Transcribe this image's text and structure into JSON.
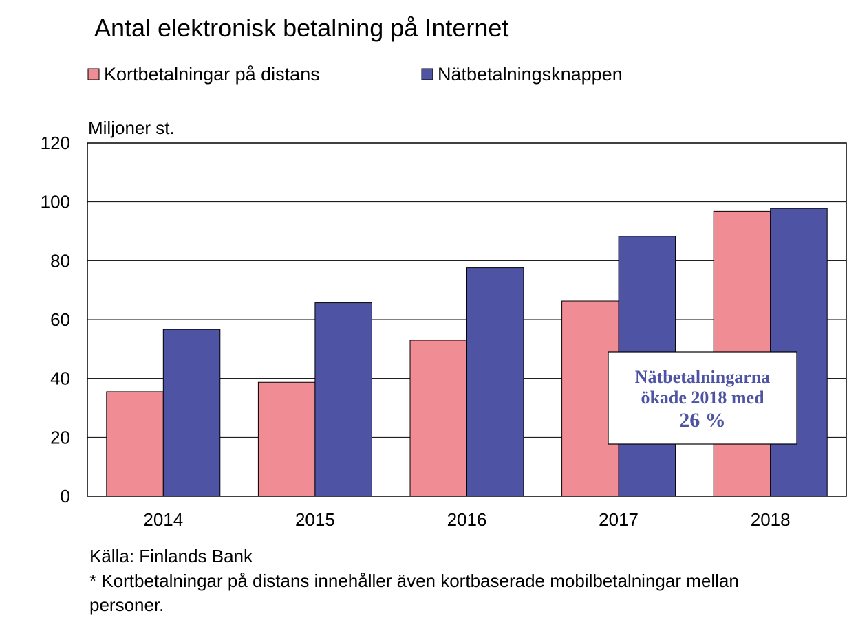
{
  "chart_data": {
    "type": "bar",
    "title": "Antal elektronisk betalning på Internet",
    "unit_label": "Miljoner st.",
    "categories": [
      "2014",
      "2015",
      "2016",
      "2017",
      "2018"
    ],
    "series": [
      {
        "name": "Kortbetalningar på distans",
        "color": "#f08c93",
        "values": [
          35.5,
          38.7,
          53.0,
          66.3,
          96.8
        ]
      },
      {
        "name": "Nätbetalningsknappen",
        "color": "#4e54a3",
        "values": [
          56.7,
          65.7,
          77.6,
          88.3,
          97.8
        ]
      }
    ],
    "ylim": [
      0,
      120
    ],
    "yticks": [
      0,
      20,
      40,
      60,
      80,
      100,
      120
    ],
    "grid": true,
    "legend_position": "top-left",
    "annotation": {
      "lines": [
        "Nätbetalningarna",
        "ökade 2018 med",
        "26 %"
      ],
      "color": "#4e54a3"
    },
    "source": "Källa: Finlands Bank",
    "footnote_lines": [
      "* Kortbetalningar på distans innehåller även kortbaserade mobilbetalningar mellan",
      "personer."
    ]
  }
}
